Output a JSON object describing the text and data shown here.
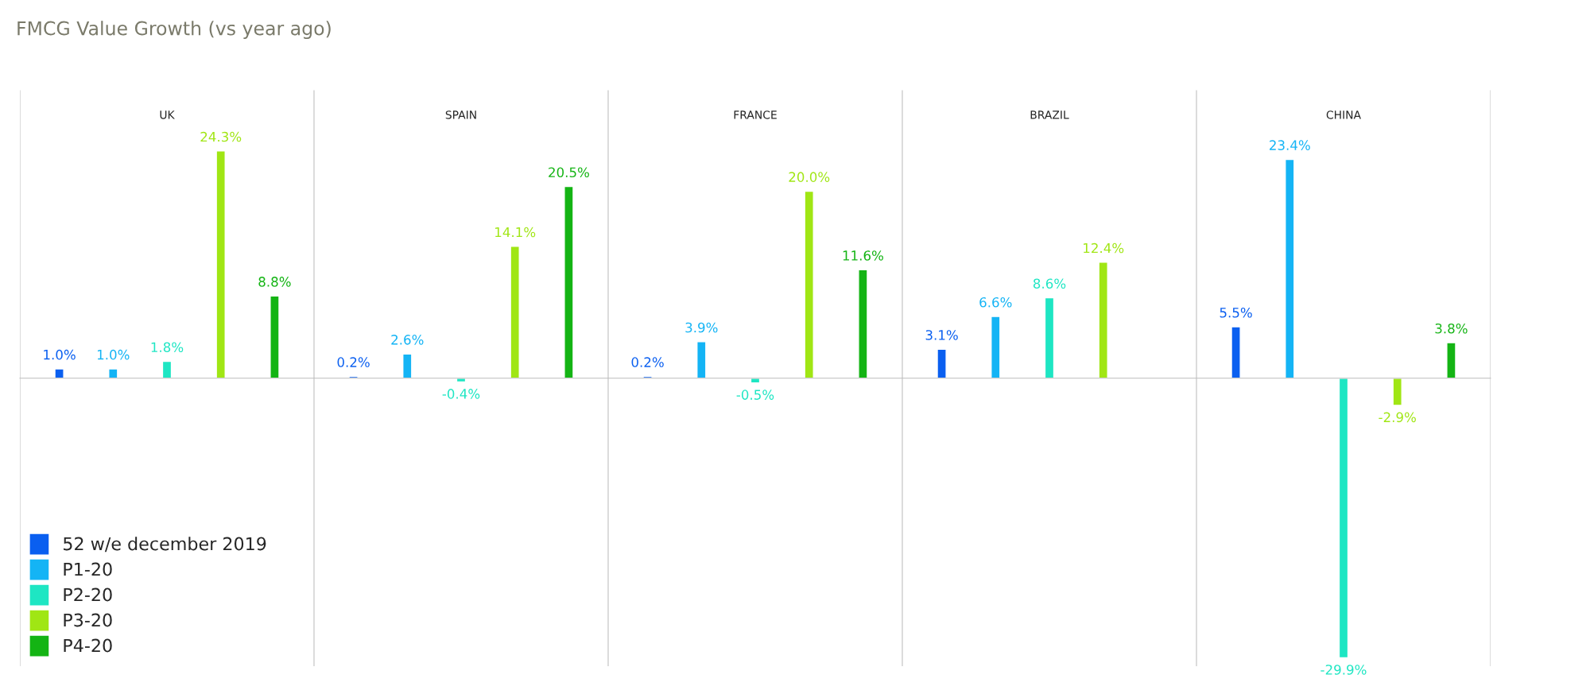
{
  "chart_data": {
    "type": "bar",
    "title": "FMCG Value Growth (vs year ago)",
    "categories": [
      "UK",
      "SPAIN",
      "FRANCE",
      "BRAZIL",
      "CHINA"
    ],
    "series": [
      {
        "name": "52 w/e december 2019",
        "color": "#0a5ff0",
        "values": [
          1.0,
          0.2,
          0.2,
          3.1,
          5.5
        ],
        "value_labels": [
          "1.0%",
          "0.2%",
          "0.2%",
          "3.1%",
          "5.5%"
        ]
      },
      {
        "name": "P1-20",
        "color": "#14b4f5",
        "values": [
          1.0,
          2.6,
          3.9,
          6.6,
          23.4
        ],
        "value_labels": [
          "1.0%",
          "2.6%",
          "3.9%",
          "6.6%",
          "23.4%"
        ]
      },
      {
        "name": "P2-20",
        "color": "#1ee6c3",
        "values": [
          1.8,
          -0.4,
          -0.5,
          8.6,
          -29.9
        ],
        "value_labels": [
          "1.8%",
          "-0.4%",
          "-0.5%",
          "8.6%",
          "-29.9%"
        ]
      },
      {
        "name": "P3-20",
        "color": "#a0e614",
        "values": [
          24.3,
          14.1,
          20.0,
          12.4,
          -2.9
        ],
        "value_labels": [
          "24.3%",
          "14.1%",
          "20.0%",
          "12.4%",
          "-2.9%"
        ]
      },
      {
        "name": "P4-20",
        "color": "#14b414",
        "values": [
          8.8,
          20.5,
          11.6,
          null,
          3.8
        ],
        "value_labels": [
          "8.8%",
          "20.5%",
          "11.6%",
          null,
          "3.8%"
        ]
      }
    ],
    "grid": "x",
    "legend": "bottom left"
  }
}
